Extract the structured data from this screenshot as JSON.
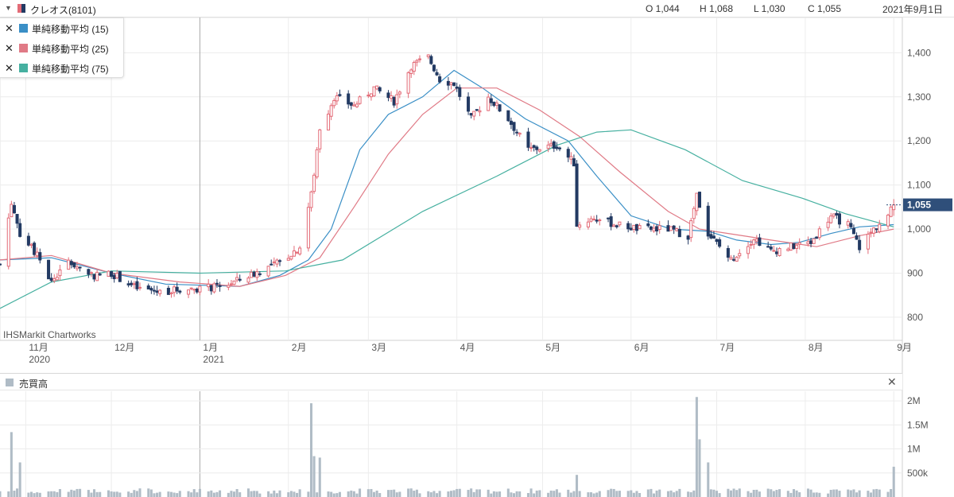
{
  "header": {
    "symbol": "クレオス(8101)",
    "open": "O 1,044",
    "high": "H 1,068",
    "low": "L 1,030",
    "close": "C 1,055",
    "date": "2021年9月1日"
  },
  "legend": [
    {
      "label": "単純移動平均 (15)",
      "color": "#3a8fc6"
    },
    {
      "label": "単純移動平均 (25)",
      "color": "#e07a86"
    },
    {
      "label": "単純移動平均 (75)",
      "color": "#46b0a0"
    }
  ],
  "watermark": "IHSMarkit Chartworks",
  "last_price_tag": "1,055",
  "volume_panel": {
    "label": "売買高",
    "close_icon": "close-icon"
  },
  "colors": {
    "up": "#e36b77",
    "down": "#233a63",
    "ma15": "#3a8fc6",
    "ma25": "#e07a86",
    "ma75": "#46b0a0",
    "volume": "#b0bcc6",
    "tag": "#2f4f7a"
  },
  "chart_data": [
    {
      "type": "candlestick",
      "title": "",
      "y_ticks": [
        "800",
        "900",
        "1,000",
        "1,100",
        "1,200",
        "1,300",
        "1,400"
      ],
      "ylim": [
        780,
        1480
      ],
      "x_ticks": [
        {
          "label": "11月",
          "sub": "2020",
          "date": "2020-11-01"
        },
        {
          "label": "12月",
          "sub": "",
          "date": "2020-12-01"
        },
        {
          "label": "1月",
          "sub": "2021",
          "date": "2021-01-01"
        },
        {
          "label": "2月",
          "sub": "",
          "date": "2021-02-01"
        },
        {
          "label": "3月",
          "sub": "",
          "date": "2021-03-01"
        },
        {
          "label": "4月",
          "sub": "",
          "date": "2021-04-01"
        },
        {
          "label": "5月",
          "sub": "",
          "date": "2021-05-01"
        },
        {
          "label": "6月",
          "sub": "",
          "date": "2021-06-01"
        },
        {
          "label": "7月",
          "sub": "",
          "date": "2021-07-01"
        },
        {
          "label": "8月",
          "sub": "",
          "date": "2021-08-01"
        },
        {
          "label": "9月",
          "sub": "",
          "date": "2021-09-01"
        }
      ],
      "xlim": [
        "2020-10-23",
        "2021-09-04"
      ],
      "price_path": [
        [
          "2020-10-23",
          920
        ],
        [
          "2020-10-27",
          1060
        ],
        [
          "2020-10-30",
          990
        ],
        [
          "2020-11-05",
          940
        ],
        [
          "2020-11-10",
          880
        ],
        [
          "2020-11-16",
          925
        ],
        [
          "2020-11-25",
          895
        ],
        [
          "2020-12-01",
          900
        ],
        [
          "2020-12-10",
          865
        ],
        [
          "2020-12-18",
          858
        ],
        [
          "2020-12-28",
          865
        ],
        [
          "2021-01-08",
          868
        ],
        [
          "2021-01-15",
          885
        ],
        [
          "2021-01-22",
          905
        ],
        [
          "2021-01-29",
          925
        ],
        [
          "2021-02-05",
          960
        ],
        [
          "2021-02-09",
          1080
        ],
        [
          "2021-02-12",
          1220
        ],
        [
          "2021-02-17",
          1300
        ],
        [
          "2021-02-24",
          1280
        ],
        [
          "2021-03-03",
          1320
        ],
        [
          "2021-03-10",
          1290
        ],
        [
          "2021-03-16",
          1370
        ],
        [
          "2021-03-22",
          1390
        ],
        [
          "2021-03-26",
          1340
        ],
        [
          "2021-03-31",
          1330
        ],
        [
          "2021-04-06",
          1250
        ],
        [
          "2021-04-12",
          1300
        ],
        [
          "2021-04-19",
          1250
        ],
        [
          "2021-04-26",
          1180
        ],
        [
          "2021-05-06",
          1190
        ],
        [
          "2021-05-12",
          1150
        ],
        [
          "2021-05-13",
          1010
        ],
        [
          "2021-05-19",
          1025
        ],
        [
          "2021-05-27",
          1010
        ],
        [
          "2021-06-04",
          1000
        ],
        [
          "2021-06-14",
          1000
        ],
        [
          "2021-06-21",
          985
        ],
        [
          "2021-06-24",
          1075
        ],
        [
          "2021-06-28",
          990
        ],
        [
          "2021-07-06",
          930
        ],
        [
          "2021-07-14",
          980
        ],
        [
          "2021-07-20",
          950
        ],
        [
          "2021-07-27",
          960
        ],
        [
          "2021-08-03",
          970
        ],
        [
          "2021-08-10",
          1030
        ],
        [
          "2021-08-16",
          1010
        ],
        [
          "2021-08-20",
          960
        ],
        [
          "2021-08-25",
          1000
        ],
        [
          "2021-08-30",
          1030
        ],
        [
          "2021-09-01",
          1055
        ]
      ],
      "ma_series": [
        {
          "name": "単純移動平均 (15)",
          "points": [
            [
              "2020-10-23",
              930
            ],
            [
              "2020-11-10",
              935
            ],
            [
              "2020-12-01",
              900
            ],
            [
              "2020-12-20",
              875
            ],
            [
              "2021-01-15",
              870
            ],
            [
              "2021-01-29",
              895
            ],
            [
              "2021-02-08",
              930
            ],
            [
              "2021-02-16",
              1000
            ],
            [
              "2021-02-26",
              1180
            ],
            [
              "2021-03-08",
              1260
            ],
            [
              "2021-03-20",
              1300
            ],
            [
              "2021-03-31",
              1360
            ],
            [
              "2021-04-10",
              1320
            ],
            [
              "2021-04-25",
              1250
            ],
            [
              "2021-05-10",
              1200
            ],
            [
              "2021-05-20",
              1120
            ],
            [
              "2021-06-01",
              1030
            ],
            [
              "2021-06-15",
              1000
            ],
            [
              "2021-06-28",
              995
            ],
            [
              "2021-07-08",
              975
            ],
            [
              "2021-07-20",
              965
            ],
            [
              "2021-07-30",
              970
            ],
            [
              "2021-08-10",
              990
            ],
            [
              "2021-08-20",
              1005
            ],
            [
              "2021-09-01",
              1010
            ]
          ]
        },
        {
          "name": "単純移動平均 (25)",
          "points": [
            [
              "2020-10-23",
              930
            ],
            [
              "2020-11-10",
              940
            ],
            [
              "2020-12-01",
              900
            ],
            [
              "2020-12-25",
              880
            ],
            [
              "2021-01-15",
              870
            ],
            [
              "2021-01-31",
              895
            ],
            [
              "2021-02-12",
              935
            ],
            [
              "2021-02-24",
              1050
            ],
            [
              "2021-03-08",
              1170
            ],
            [
              "2021-03-20",
              1260
            ],
            [
              "2021-04-01",
              1320
            ],
            [
              "2021-04-15",
              1320
            ],
            [
              "2021-04-30",
              1270
            ],
            [
              "2021-05-14",
              1210
            ],
            [
              "2021-05-28",
              1130
            ],
            [
              "2021-06-14",
              1040
            ],
            [
              "2021-06-25",
              1000
            ],
            [
              "2021-07-05",
              990
            ],
            [
              "2021-07-20",
              975
            ],
            [
              "2021-08-05",
              960
            ],
            [
              "2021-08-20",
              985
            ],
            [
              "2021-09-01",
              1000
            ]
          ]
        },
        {
          "name": "単純移動平均 (75)",
          "points": [
            [
              "2020-10-23",
              820
            ],
            [
              "2020-11-10",
              880
            ],
            [
              "2020-12-01",
              905
            ],
            [
              "2021-01-01",
              900
            ],
            [
              "2021-01-31",
              905
            ],
            [
              "2021-02-20",
              930
            ],
            [
              "2021-03-20",
              1040
            ],
            [
              "2021-04-15",
              1120
            ],
            [
              "2021-05-06",
              1190
            ],
            [
              "2021-05-20",
              1220
            ],
            [
              "2021-06-01",
              1225
            ],
            [
              "2021-06-20",
              1180
            ],
            [
              "2021-07-10",
              1110
            ],
            [
              "2021-07-31",
              1070
            ],
            [
              "2021-08-15",
              1035
            ],
            [
              "2021-09-01",
              1005
            ]
          ]
        }
      ],
      "candles_anchor_ohlc": {
        "open": 1044,
        "high": 1068,
        "low": 1030,
        "close": 1055
      }
    },
    {
      "type": "bar",
      "title": "売買高",
      "y_ticks": [
        "500k",
        "1M",
        "1.5M",
        "2M"
      ],
      "ylim": [
        0,
        2200000
      ],
      "spikes": [
        [
          "2020-10-27",
          1350000
        ],
        [
          "2020-10-30",
          720000
        ],
        [
          "2021-02-09",
          1950000
        ],
        [
          "2021-02-10",
          850000
        ],
        [
          "2021-02-12",
          820000
        ],
        [
          "2021-05-13",
          460000
        ],
        [
          "2021-06-24",
          2080000
        ],
        [
          "2021-06-25",
          1200000
        ],
        [
          "2021-06-28",
          720000
        ],
        [
          "2021-09-01",
          630000
        ]
      ],
      "base_volume": 120000
    }
  ]
}
